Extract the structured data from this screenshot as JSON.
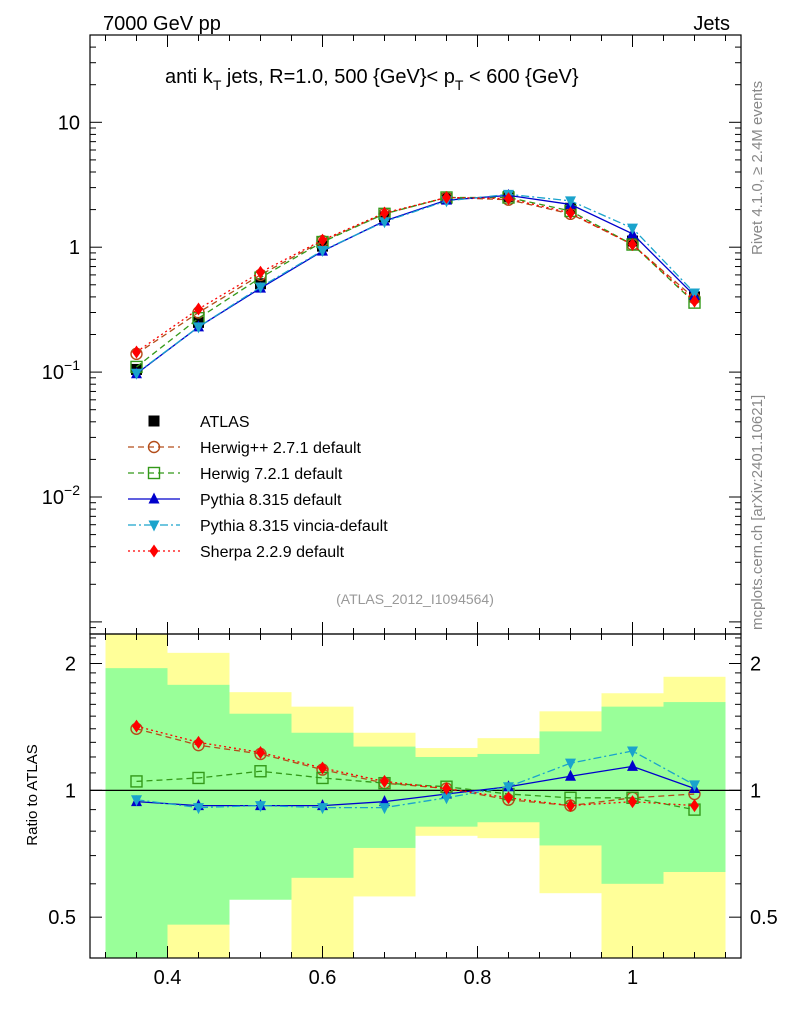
{
  "header": {
    "left": "7000 GeV pp",
    "right": "Jets"
  },
  "title": {
    "prefix": "anti k",
    "prefix_sub": "T",
    "middle": " jets, R=1.0,  500 {GeV}< p",
    "middle_sub": "T",
    "suffix": " < 600 {GeV}"
  },
  "side_labels": {
    "rivet": "Rivet 4.1.0, ≥ 2.4M events",
    "mcplots": "mcplots.cern.ch [arXiv:2401.10621]"
  },
  "analysis_id": "(ATLAS_2012_I1094564)",
  "ratio_ylabel": "Ratio to ATLAS",
  "colors": {
    "band_inner": "#99ff99",
    "band_outer": "#ffff99",
    "herwigpp": "#b34d1a",
    "herwig7": "#339919",
    "pythia": "#0000cc",
    "vincia": "#1aa3cc",
    "sherpa": "#ff0000"
  },
  "chart_data": {
    "type": "line",
    "x": [
      0.36,
      0.44,
      0.52,
      0.6,
      0.68,
      0.76,
      0.84,
      0.92,
      1.0,
      1.08
    ],
    "bin_edges": [
      0.32,
      0.4,
      0.48,
      0.56,
      0.64,
      0.72,
      0.8,
      0.88,
      0.96,
      1.04,
      1.12
    ],
    "main": {
      "yscale": "log",
      "ylim": [
        0.0008,
        50
      ],
      "yticks": [
        {
          "value": 0.01,
          "base": "10",
          "exp": "−2"
        },
        {
          "value": 0.1,
          "base": "10",
          "exp": "−1"
        },
        {
          "value": 1,
          "base": "1",
          "exp": ""
        },
        {
          "value": 10,
          "base": "10",
          "exp": ""
        }
      ]
    },
    "ratio": {
      "yscale": "log",
      "ylim": [
        0.4,
        2.35
      ],
      "yticks": [
        {
          "value": 0.5,
          "label": "0.5"
        },
        {
          "value": 1,
          "label": "1"
        },
        {
          "value": 2,
          "label": "2"
        }
      ]
    },
    "xlim": [
      0.3,
      1.14
    ],
    "xticks": [
      0.4,
      0.6,
      0.8,
      1.0
    ],
    "xtick_labels": [
      "0.4",
      "0.6",
      "0.8",
      "1"
    ],
    "data": {
      "name": "ATLAS",
      "values": [
        0.105,
        0.25,
        0.51,
        1.02,
        1.75,
        2.45,
        2.55,
        2.05,
        1.12,
        0.4
      ]
    },
    "uncertainty_band": {
      "inner": [
        [
          0.32,
          1.95
        ],
        [
          0.48,
          1.78
        ],
        [
          0.55,
          1.52
        ],
        [
          0.62,
          1.37
        ],
        [
          0.73,
          1.27
        ],
        [
          0.82,
          1.2
        ],
        [
          0.84,
          1.22
        ],
        [
          0.74,
          1.38
        ],
        [
          0.6,
          1.58
        ],
        [
          0.64,
          1.62
        ]
      ],
      "outer": [
        [
          0.3,
          2.45
        ],
        [
          0.3,
          2.12
        ],
        [
          0.73,
          1.71
        ],
        [
          0.37,
          1.58
        ],
        [
          0.56,
          1.37
        ],
        [
          0.78,
          1.26
        ],
        [
          0.77,
          1.33
        ],
        [
          0.57,
          1.54
        ],
        [
          0.37,
          1.7
        ],
        [
          0.35,
          1.86
        ]
      ]
    },
    "series": [
      {
        "name": "Herwig++ 2.7.1 default",
        "color_key": "herwigpp",
        "dash": "6,4",
        "marker": "circle-open",
        "values": [
          0.14,
          0.3,
          0.6,
          1.12,
          1.85,
          2.5,
          2.4,
          1.85,
          1.05,
          0.39
        ],
        "ratio": [
          1.4,
          1.28,
          1.22,
          1.12,
          1.04,
          1.01,
          0.95,
          0.92,
          0.96,
          0.98
        ]
      },
      {
        "name": "Herwig 7.2.1 default",
        "color_key": "herwig7",
        "dash": "6,4",
        "marker": "square-open",
        "values": [
          0.11,
          0.27,
          0.57,
          1.1,
          1.85,
          2.5,
          2.5,
          1.95,
          1.05,
          0.36
        ],
        "ratio": [
          1.05,
          1.07,
          1.11,
          1.07,
          1.04,
          1.02,
          0.98,
          0.96,
          0.96,
          0.9
        ]
      },
      {
        "name": "Pythia 8.315 default",
        "color_key": "pythia",
        "dash": "",
        "marker": "triangle-up",
        "values": [
          0.097,
          0.23,
          0.47,
          0.93,
          1.62,
          2.38,
          2.6,
          2.2,
          1.28,
          0.41
        ],
        "ratio": [
          0.94,
          0.92,
          0.92,
          0.92,
          0.94,
          0.98,
          1.02,
          1.08,
          1.14,
          1.01
        ]
      },
      {
        "name": "Pythia 8.315 vincia-default",
        "color_key": "vincia",
        "dash": "8,3,2,3",
        "marker": "triangle-down",
        "values": [
          0.098,
          0.23,
          0.48,
          0.94,
          1.6,
          2.35,
          2.65,
          2.35,
          1.42,
          0.43
        ],
        "ratio": [
          0.95,
          0.91,
          0.92,
          0.91,
          0.91,
          0.96,
          1.02,
          1.16,
          1.24,
          1.03
        ]
      },
      {
        "name": "Sherpa 2.2.9 default",
        "color_key": "sherpa",
        "dash": "2,3",
        "marker": "diamond",
        "values": [
          0.145,
          0.32,
          0.63,
          1.14,
          1.88,
          2.5,
          2.45,
          1.88,
          1.05,
          0.37
        ],
        "ratio": [
          1.42,
          1.3,
          1.23,
          1.13,
          1.05,
          1.01,
          0.96,
          0.92,
          0.94,
          0.92
        ]
      }
    ]
  }
}
